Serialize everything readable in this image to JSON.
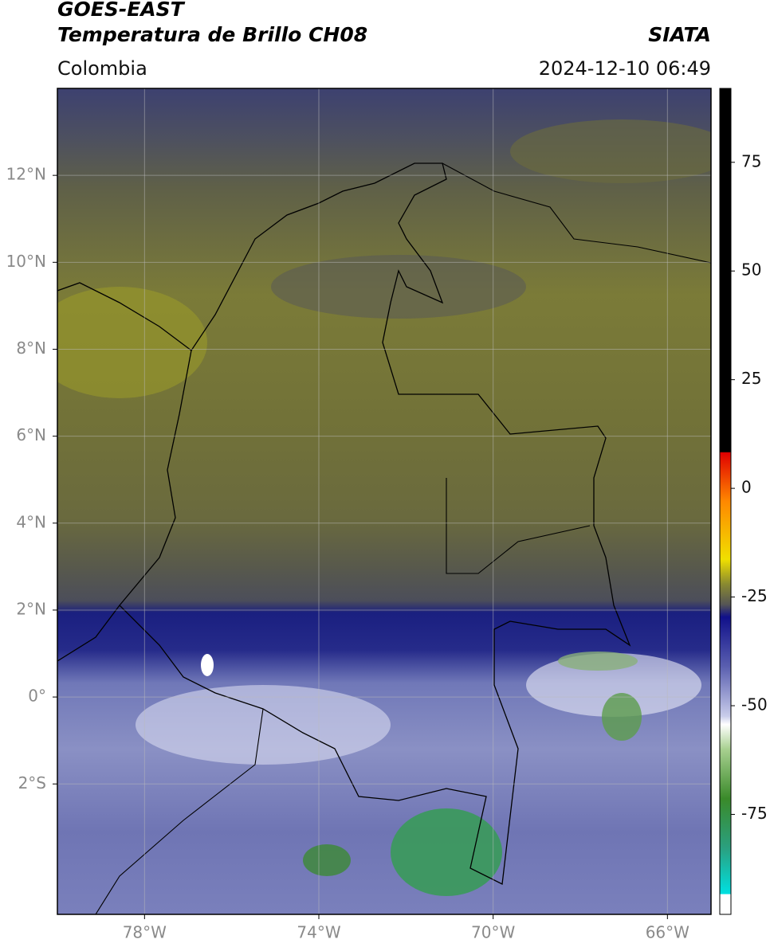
{
  "header": {
    "title": "GOES-EAST",
    "subtitle": "Temperatura de Brillo CH08",
    "source": "SIATA",
    "region": "Colombia",
    "datetime": "2024-12-10 06:49"
  },
  "map": {
    "xlim": [
      -80,
      -65
    ],
    "ylim": [
      -5,
      14
    ],
    "xticks": [
      {
        "value": -78,
        "label": "78°W"
      },
      {
        "value": -74,
        "label": "74°W"
      },
      {
        "value": -70,
        "label": "70°W"
      },
      {
        "value": -66,
        "label": "66°W"
      }
    ],
    "yticks": [
      {
        "value": 12,
        "label": "12°N"
      },
      {
        "value": 10,
        "label": "10°N"
      },
      {
        "value": 8,
        "label": "8°N"
      },
      {
        "value": 6,
        "label": "6°N"
      },
      {
        "value": 4,
        "label": "4°N"
      },
      {
        "value": 2,
        "label": "2°N"
      },
      {
        "value": 0,
        "label": "0°"
      },
      {
        "value": -2,
        "label": "2°S"
      }
    ]
  },
  "colorbar": {
    "lim": [
      -98,
      92
    ],
    "ticks": [
      75,
      50,
      25,
      0,
      -25,
      -50,
      -75
    ]
  }
}
